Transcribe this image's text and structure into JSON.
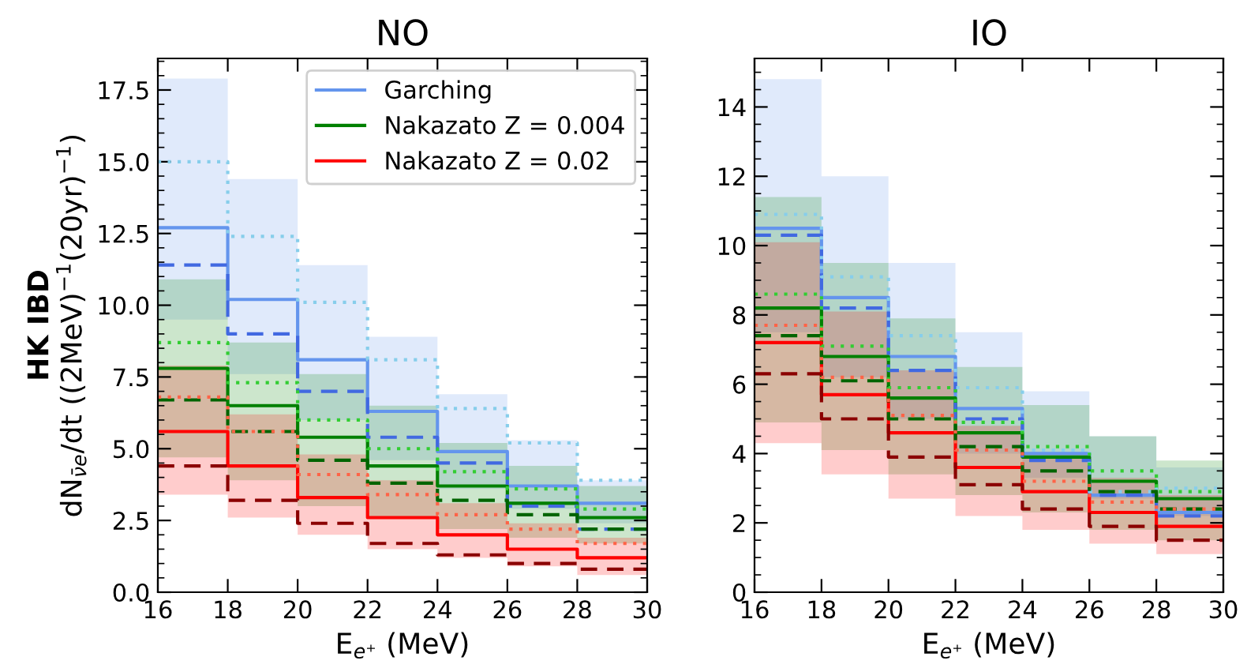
{
  "chart_data": [
    {
      "type": "step",
      "title": "NO",
      "xlabel": "E$_{e⁺}$ (MeV)",
      "ylabel": "dN$_{ν̄e}$/dt ((2MeV)$^{−1}$(20yr)$^{−1}$)",
      "annotations": [
        "HK IBD"
      ],
      "x": [
        16,
        18,
        20,
        22,
        24,
        26,
        28,
        30
      ],
      "xlim": [
        16,
        30
      ],
      "xticks": [
        16,
        18,
        20,
        22,
        24,
        26,
        28,
        30
      ],
      "ylim": [
        0,
        18.6
      ],
      "yticks": [
        {
          "value": 0,
          "label": "0.0"
        },
        2.5,
        {
          "value": 5,
          "label": "5.0"
        },
        7.5,
        {
          "value": 10,
          "label": "10.0"
        },
        12.5,
        {
          "value": 15,
          "label": "15.0"
        },
        17.5
      ],
      "legend": "top right",
      "grid": false,
      "series": [
        {
          "name": "Garching",
          "color": "#6495ed",
          "line_style": "solid",
          "values": [
            12.7,
            10.2,
            8.1,
            6.3,
            4.9,
            3.7,
            3.1,
            3.1
          ],
          "lower": [
            9.5,
            7.6,
            6.0,
            4.6,
            3.6,
            2.9,
            2.4,
            2.4
          ],
          "upper": [
            17.9,
            14.4,
            11.4,
            8.9,
            6.9,
            5.3,
            3.9,
            3.9
          ]
        },
        {
          "name": "Nakazato Z = 0.004",
          "color": "#008000",
          "line_style": "solid",
          "values": [
            7.8,
            6.5,
            5.4,
            4.4,
            3.7,
            3.1,
            2.6,
            2.6
          ],
          "lower": [
            4.7,
            3.9,
            3.0,
            2.6,
            2.2,
            1.9,
            1.7,
            1.7
          ],
          "upper": [
            10.9,
            8.7,
            7.6,
            6.5,
            5.2,
            4.4,
            3.7,
            3.7
          ]
        },
        {
          "name": "Nakazato Z = 0.02",
          "color": "#ff0000",
          "line_style": "solid",
          "values": [
            5.6,
            4.4,
            3.3,
            2.6,
            2.0,
            1.5,
            1.2,
            1.2
          ],
          "lower": [
            3.4,
            2.6,
            2.0,
            1.5,
            1.2,
            0.9,
            0.6,
            0.6
          ],
          "upper": [
            7.9,
            6.2,
            4.8,
            3.9,
            3.1,
            2.4,
            1.9,
            1.9
          ]
        },
        {
          "color": "#4169e1",
          "line_style": "dashed",
          "values": [
            11.4,
            9.0,
            7.0,
            5.4,
            4.5,
            3.0,
            2.2,
            2.2
          ]
        },
        {
          "color": "#87ceeb",
          "line_style": "dotted",
          "values": [
            15.0,
            12.4,
            10.1,
            8.1,
            6.4,
            5.2,
            3.9,
            3.9
          ]
        },
        {
          "color": "#006400",
          "line_style": "dashed",
          "values": [
            6.7,
            5.6,
            4.6,
            3.8,
            3.2,
            2.7,
            2.2,
            2.2
          ]
        },
        {
          "color": "#32cd32",
          "line_style": "dotted",
          "values": [
            8.7,
            7.3,
            6.0,
            5.0,
            4.2,
            3.6,
            2.9,
            2.9
          ]
        },
        {
          "color": "#8b0000",
          "line_style": "dashed",
          "values": [
            4.4,
            3.2,
            2.4,
            1.7,
            1.3,
            1.0,
            0.8,
            0.8
          ]
        },
        {
          "color": "#ff6347",
          "line_style": "dotted",
          "values": [
            6.8,
            5.6,
            4.1,
            3.4,
            2.7,
            2.2,
            1.7,
            1.7
          ]
        }
      ]
    },
    {
      "type": "step",
      "title": "IO",
      "xlabel": "E$_{e⁺}$ (MeV)",
      "x": [
        16,
        18,
        20,
        22,
        24,
        26,
        28,
        30
      ],
      "xlim": [
        16,
        30
      ],
      "xticks": [
        16,
        18,
        20,
        22,
        24,
        26,
        28,
        30
      ],
      "ylim": [
        0,
        15.4
      ],
      "yticks": [
        0,
        2,
        4,
        6,
        8,
        10,
        12,
        14
      ],
      "grid": false,
      "series": [
        {
          "color": "#6495ed",
          "line_style": "solid",
          "values": [
            10.5,
            8.5,
            6.8,
            5.3,
            4.0,
            2.8,
            2.3,
            2.3
          ],
          "lower": [
            7.5,
            6.2,
            5.0,
            4.0,
            3.3,
            2.7,
            2.2,
            2.2
          ],
          "upper": [
            14.8,
            12.0,
            9.5,
            7.5,
            5.8,
            4.5,
            3.6,
            3.6
          ]
        },
        {
          "color": "#008000",
          "line_style": "solid",
          "values": [
            8.2,
            6.8,
            5.6,
            4.6,
            3.9,
            3.2,
            2.7,
            2.7
          ],
          "lower": [
            4.9,
            4.1,
            3.4,
            2.8,
            2.3,
            1.8,
            1.5,
            1.5
          ],
          "upper": [
            11.4,
            9.5,
            7.9,
            6.5,
            5.4,
            4.5,
            3.8,
            3.8
          ]
        },
        {
          "color": "#ff0000",
          "line_style": "solid",
          "values": [
            7.2,
            5.7,
            4.6,
            3.6,
            2.9,
            2.3,
            1.9,
            1.9
          ],
          "lower": [
            4.3,
            3.4,
            2.7,
            2.2,
            1.8,
            1.4,
            1.1,
            1.1
          ],
          "upper": [
            10.1,
            8.1,
            6.4,
            4.8,
            4.0,
            3.3,
            2.8,
            2.8
          ]
        },
        {
          "color": "#4169e1",
          "line_style": "dashed",
          "values": [
            10.3,
            8.2,
            6.4,
            5.0,
            3.8,
            2.8,
            2.2,
            2.2
          ]
        },
        {
          "color": "#87ceeb",
          "line_style": "dotted",
          "values": [
            10.9,
            9.1,
            7.4,
            5.9,
            4.1,
            2.9,
            3.0,
            3.0
          ]
        },
        {
          "color": "#006400",
          "line_style": "dashed",
          "values": [
            7.4,
            6.1,
            5.0,
            4.2,
            3.5,
            2.9,
            2.4,
            2.4
          ]
        },
        {
          "color": "#32cd32",
          "line_style": "dotted",
          "values": [
            8.6,
            7.1,
            5.9,
            4.9,
            4.2,
            3.5,
            2.9,
            2.9
          ]
        },
        {
          "color": "#8b0000",
          "line_style": "dashed",
          "values": [
            6.3,
            5.0,
            3.9,
            3.1,
            2.4,
            1.9,
            1.5,
            1.5
          ]
        },
        {
          "color": "#ff6347",
          "line_style": "dotted",
          "values": [
            7.7,
            6.2,
            5.1,
            4.1,
            3.2,
            2.6,
            2.4,
            2.4
          ]
        }
      ]
    }
  ]
}
